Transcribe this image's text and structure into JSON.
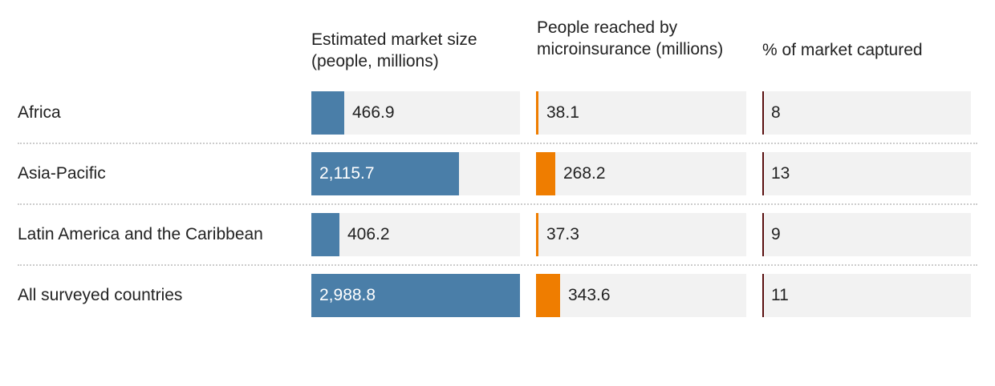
{
  "colors": {
    "market_bar": "#4a7ea8",
    "reached_bar": "#ef7d00",
    "pct_marker": "#5a1010",
    "cell_bg": "#f2f2f2"
  },
  "headers": {
    "market": "Estimated market size (people, millions)",
    "reached": "People reached by microinsurance (millions)",
    "pct": "% of market captured"
  },
  "chart_data": {
    "type": "table",
    "columns": [
      "Estimated market size (people, millions)",
      "People reached by microinsurance (millions)",
      "% of market captured"
    ],
    "max_market": 2988.8,
    "max_reached": 2988.8,
    "rows": [
      {
        "region": "Africa",
        "market": 466.9,
        "market_label": "466.9",
        "reached": 38.1,
        "reached_label": "38.1",
        "pct": 8,
        "pct_label": "8"
      },
      {
        "region": "Asia-Pacific",
        "market": 2115.7,
        "market_label": "2,115.7",
        "reached": 268.2,
        "reached_label": "268.2",
        "pct": 13,
        "pct_label": "13"
      },
      {
        "region": "Latin America and the Caribbean",
        "market": 406.2,
        "market_label": "406.2",
        "reached": 37.3,
        "reached_label": "37.3",
        "pct": 9,
        "pct_label": "9"
      },
      {
        "region": "All surveyed countries",
        "market": 2988.8,
        "market_label": "2,988.8",
        "reached": 343.6,
        "reached_label": "343.6",
        "pct": 11,
        "pct_label": "11"
      }
    ]
  }
}
